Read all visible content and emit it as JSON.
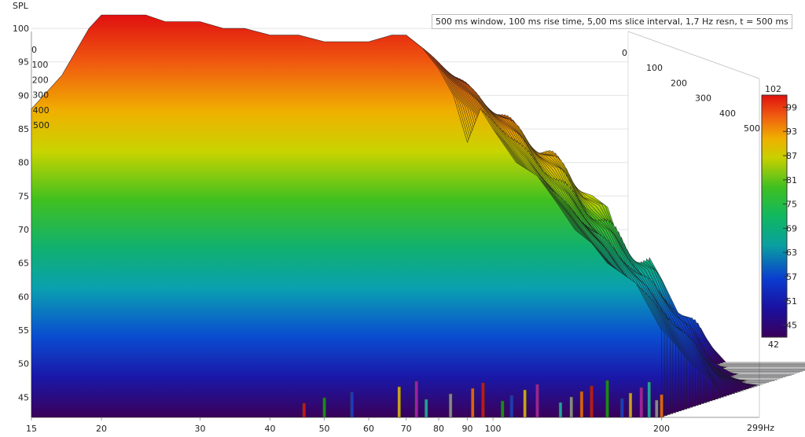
{
  "chart_data": {
    "type": "waterfall",
    "title": "500 ms window, 100 ms rise time, 5,00 ms slice interval, 1,7 Hz resn, t = 500 ms",
    "ylabel": "SPL",
    "xunit": "Hz",
    "x_scale": "log",
    "xlim": [
      15,
      299
    ],
    "ylim": [
      42,
      102
    ],
    "x_ticks": [
      15,
      20,
      30,
      40,
      50,
      60,
      70,
      80,
      90,
      100,
      200
    ],
    "x_end_label": "299Hz",
    "y_ticks": [
      45,
      50,
      55,
      60,
      65,
      70,
      75,
      80,
      85,
      90,
      95,
      100
    ],
    "time_ticks_ms": [
      0,
      100,
      200,
      300,
      400,
      500
    ],
    "colorbar": {
      "ticks": [
        45,
        51,
        57,
        63,
        69,
        75,
        81,
        87,
        93,
        99
      ],
      "min_label": "42",
      "max_label": "102",
      "colors": [
        "#3a005a",
        "#1a10a0",
        "#0a3cd0",
        "#0aa0a0",
        "#10b860",
        "#40c020",
        "#c8d000",
        "#f0b000",
        "#f06010",
        "#e01010"
      ]
    },
    "series": [
      {
        "time_ms": 0,
        "frequency_hz": [
          15,
          17,
          19,
          20,
          22,
          24,
          26,
          28,
          30,
          33,
          36,
          40,
          45,
          50,
          55,
          60,
          66,
          70,
          75,
          80,
          85,
          90,
          95,
          100,
          110,
          120,
          130,
          140,
          150,
          160,
          180,
          200
        ],
        "spl_db": [
          88,
          93,
          100,
          102,
          102,
          102,
          101,
          101,
          101,
          100,
          100,
          99,
          99,
          98,
          98,
          98,
          99,
          99,
          97,
          94,
          90,
          83,
          88,
          85,
          80,
          78,
          74,
          70,
          68,
          65,
          62,
          55
        ]
      }
    ]
  }
}
